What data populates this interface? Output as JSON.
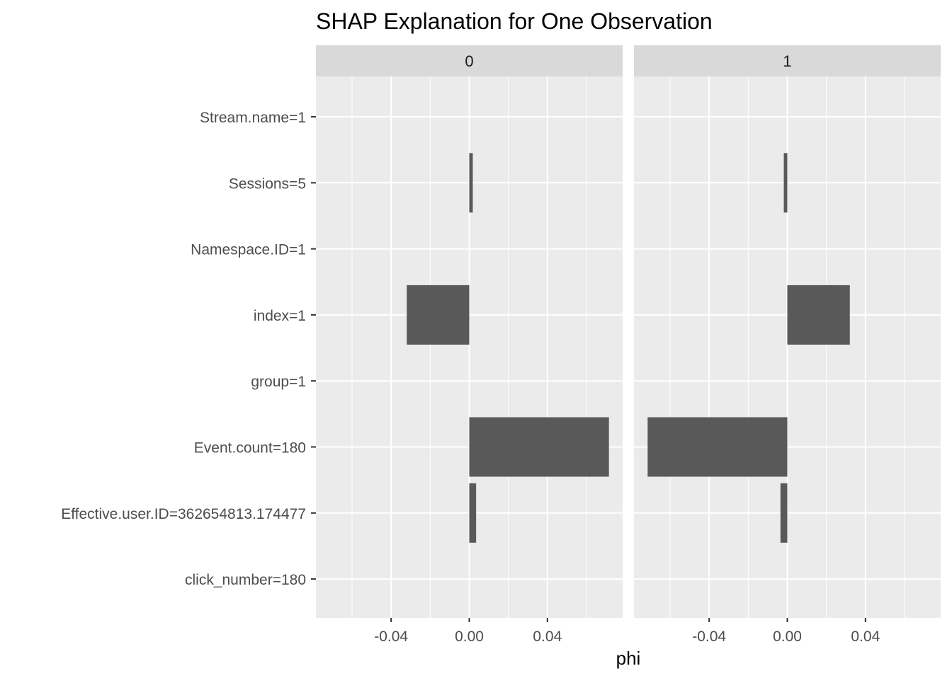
{
  "chart_data": {
    "type": "bar",
    "orientation": "horizontal",
    "title": "SHAP Explanation for One Observation",
    "xlabel": "phi",
    "ylabel": "",
    "xlim": [
      -0.0785,
      0.0785
    ],
    "x_ticks": [
      -0.04,
      0.0,
      0.04
    ],
    "x_tick_labels": [
      "-0.04",
      "0.00",
      "0.04"
    ],
    "grid": true,
    "bar_color": "#595959",
    "panel_background": "#EBEBEB",
    "strip_background": "#D9D9D9",
    "categories": [
      "Stream.name=1",
      "Sessions=5",
      "Namespace.ID=1",
      "index=1",
      "group=1",
      "Event.count=180",
      "Effective.user.ID=362654813.174477",
      "click_number=180"
    ],
    "facets": [
      {
        "name": "0",
        "values": [
          0,
          0.0018,
          0,
          -0.032,
          0,
          0.0715,
          0.0035,
          0
        ]
      },
      {
        "name": "1",
        "values": [
          0,
          -0.0018,
          0,
          0.032,
          0,
          -0.0715,
          -0.0035,
          0
        ]
      }
    ]
  }
}
